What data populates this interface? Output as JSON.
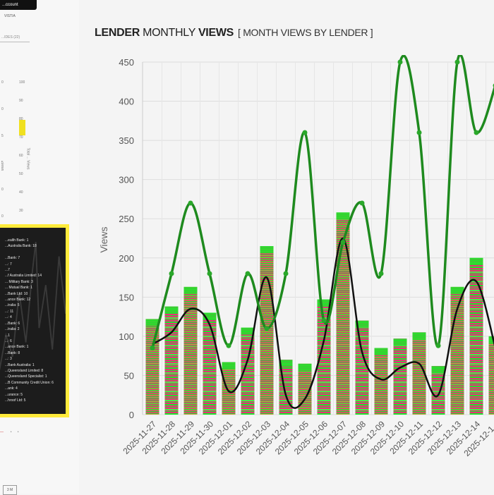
{
  "sidebar": {
    "top_button": "...ccount",
    "small_label": "VISTIA",
    "tab_label": "...IDES (22)",
    "mini_ticks_left": [
      "0",
      "0",
      "5",
      "5",
      "0",
      "0"
    ],
    "mini_ticks_right": [
      "100",
      "90",
      "80",
      "70",
      "60",
      "50",
      "40",
      "30"
    ],
    "mini_axis_title_left": "...iews",
    "mini_axis_title_right": "Total ... Views",
    "lenders": [
      "...ealth Bank: 1",
      "...Australia Bank: 18",
      "",
      "...Bank: 7",
      "...: 7",
      "...7",
      "...f Australia Limited: 14",
      "... Military Bank: 3",
      "... Mutual Bank: 1",
      "...Bank Ltd: 10",
      "...ance Bank: 12",
      "...tralia: 5",
      "...: 11",
      "...: 4",
      "...Bank: 6",
      "...tralia: 2",
      "...1",
      "...: 6",
      "...ance Bank: 1",
      "...Bank: 8",
      "...: 3",
      "...Bank Australia: 1",
      "...Queensland Limited: 8",
      "...Queensland Specialist: 1",
      "...B Community Credit Union: 6",
      "...ank: 4",
      "...urance: 5",
      "...hroof Ltd: 5"
    ],
    "bottom_box": "3 M"
  },
  "chart_title": {
    "part1": "LENDER",
    "part2": " MONTHLY ",
    "part3": "VIEWS",
    "subtitle": "[ MONTH VIEWS BY LENDER ]"
  },
  "chart_data": {
    "type": "bar",
    "ylabel": "Views",
    "xlabel": "",
    "ylim": [
      0,
      450
    ],
    "yticks": [
      0,
      50,
      100,
      150,
      200,
      250,
      300,
      350,
      400,
      450
    ],
    "grid": true,
    "categories": [
      "2025-11-27",
      "2025-11-28",
      "2025-11-29",
      "2025-11-30",
      "2025-12-01",
      "2025-12-02",
      "2025-12-03",
      "2025-12-04",
      "2025-12-05",
      "2025-12-06",
      "2025-12-07",
      "2025-12-08",
      "2025-12-09",
      "2025-12-10",
      "2025-12-11",
      "2025-12-12",
      "2025-12-13",
      "2025-12-14",
      "2025-12-1..."
    ],
    "series": [
      {
        "type": "bar",
        "values": [
          122,
          138,
          163,
          130,
          67,
          111,
          215,
          70,
          65,
          147,
          258,
          120,
          85,
          97,
          105,
          62,
          163,
          200,
          100
        ]
      },
      {
        "type": "line",
        "color": "#111111",
        "values": [
          90,
          105,
          135,
          115,
          30,
          70,
          175,
          25,
          20,
          95,
          225,
          80,
          45,
          60,
          65,
          25,
          135,
          170,
          85
        ]
      },
      {
        "type": "line",
        "color": "#1e8a1e",
        "values": [
          85,
          180,
          270,
          180,
          88,
          180,
          110,
          180,
          360,
          120,
          220,
          270,
          180,
          450,
          360,
          88,
          450,
          360,
          420
        ]
      }
    ],
    "colors": {
      "bar_green": "#22e22a",
      "bar_pink": "#e8307a",
      "line_green": "#1e8a1e",
      "line_black": "#111111",
      "grid": "#dddddd"
    }
  }
}
